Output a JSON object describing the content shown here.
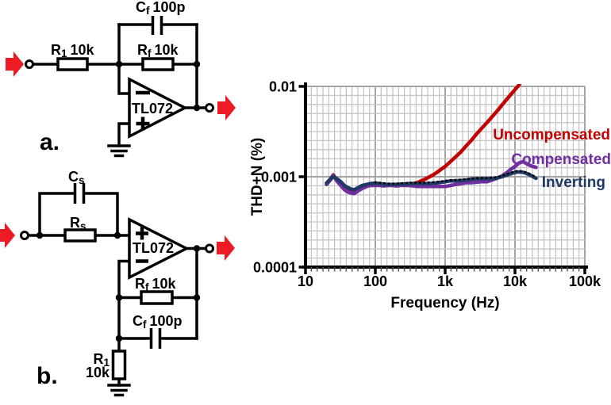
{
  "palette": {
    "arrow_red": "#ED1C24",
    "wire_black": "#000000",
    "grid_minor": "#c6c6c6",
    "grid_major": "#a4a4a4"
  },
  "circuit_a": {
    "panel_label": "a.",
    "cf": {
      "sym": "C",
      "sub": "f",
      "val": "100p"
    },
    "r1": {
      "sym": "R",
      "sub": "1",
      "val": "10k"
    },
    "rf": {
      "sym": "R",
      "sub": "f",
      "val": "10k"
    },
    "opamp": "TL072"
  },
  "circuit_b": {
    "panel_label": "b.",
    "cs": {
      "sym": "C",
      "sub": "s"
    },
    "rs": {
      "sym": "R",
      "sub": "s"
    },
    "opamp": "TL072",
    "rf": {
      "sym": "R",
      "sub": "f",
      "val": "10k"
    },
    "cf": {
      "sym": "C",
      "sub": "f",
      "val": "100p"
    },
    "r1_line1": {
      "sym": "R",
      "sub": "1"
    },
    "r1_line2": "10k"
  },
  "arrows": [
    {
      "name": "circuit-a-input-arrow",
      "tip": [
        30,
        81
      ]
    },
    {
      "name": "circuit-a-output-arrow",
      "tip": [
        297,
        136
      ]
    },
    {
      "name": "circuit-b-input-arrow",
      "tip": [
        19,
        297
      ]
    },
    {
      "name": "circuit-b-output-arrow",
      "tip": [
        296,
        313
      ]
    }
  ],
  "chart_data": {
    "type": "line",
    "xlabel": "Frequency (Hz)",
    "ylabel": "THD+N (%)",
    "x_scale": "log",
    "y_scale": "log",
    "xlim": [
      10,
      100000
    ],
    "ylim": [
      0.0001,
      0.01
    ],
    "grid": true,
    "legend_position": "right-inline",
    "x_ticks": [
      {
        "v": 10,
        "label": "10"
      },
      {
        "v": 100,
        "label": "100"
      },
      {
        "v": 1000,
        "label": "1k"
      },
      {
        "v": 10000,
        "label": "10k"
      },
      {
        "v": 100000,
        "label": "100k"
      }
    ],
    "y_ticks": [
      {
        "v": 0.01,
        "label": "0.01"
      },
      {
        "v": 0.001,
        "label": "0.001"
      },
      {
        "v": 0.0001,
        "label": "0.0001"
      }
    ],
    "series": [
      {
        "name": "Uncompensated",
        "color": "#C00000",
        "style": "solid",
        "points": [
          [
            20,
            0.00085
          ],
          [
            23,
            0.00095
          ],
          [
            25,
            0.00105
          ],
          [
            28,
            0.00092
          ],
          [
            32,
            0.0008
          ],
          [
            36,
            0.00075
          ],
          [
            40,
            0.00072
          ],
          [
            45,
            0.0007
          ],
          [
            50,
            0.0007
          ],
          [
            57,
            0.00072
          ],
          [
            65,
            0.00076
          ],
          [
            75,
            0.0008
          ],
          [
            85,
            0.00082
          ],
          [
            100,
            0.00083
          ],
          [
            115,
            0.00082
          ],
          [
            130,
            0.00081
          ],
          [
            150,
            0.0008
          ],
          [
            175,
            0.00081
          ],
          [
            200,
            0.0008
          ],
          [
            230,
            0.00081
          ],
          [
            260,
            0.00081
          ],
          [
            300,
            0.00082
          ],
          [
            350,
            0.00084
          ],
          [
            400,
            0.00086
          ],
          [
            450,
            0.0009
          ],
          [
            500,
            0.00093
          ],
          [
            600,
            0.001
          ],
          [
            700,
            0.00107
          ],
          [
            800,
            0.00115
          ],
          [
            900,
            0.00123
          ],
          [
            1000,
            0.0013
          ],
          [
            1200,
            0.00148
          ],
          [
            1400,
            0.00165
          ],
          [
            1700,
            0.0019
          ],
          [
            2000,
            0.0022
          ],
          [
            2400,
            0.00256
          ],
          [
            2800,
            0.00295
          ],
          [
            3300,
            0.0034
          ],
          [
            4000,
            0.004
          ],
          [
            4700,
            0.0046
          ],
          [
            5500,
            0.0053
          ],
          [
            6500,
            0.0062
          ],
          [
            7500,
            0.0071
          ],
          [
            8700,
            0.0081
          ],
          [
            10000,
            0.0092
          ],
          [
            11000,
            0.01
          ],
          [
            11700,
            0.0107
          ]
        ]
      },
      {
        "name": "Compensated",
        "color": "#7030A0",
        "style": "solid",
        "points": [
          [
            20,
            0.00082
          ],
          [
            23,
            0.00093
          ],
          [
            25,
            0.00104
          ],
          [
            28,
            0.0009
          ],
          [
            32,
            0.0008
          ],
          [
            36,
            0.00072
          ],
          [
            40,
            0.00068
          ],
          [
            45,
            0.00066
          ],
          [
            50,
            0.00065
          ],
          [
            57,
            0.0007
          ],
          [
            65,
            0.00074
          ],
          [
            75,
            0.00078
          ],
          [
            85,
            0.0008
          ],
          [
            100,
            0.0008
          ],
          [
            115,
            0.0008
          ],
          [
            130,
            0.00079
          ],
          [
            150,
            0.0008
          ],
          [
            175,
            0.0008
          ],
          [
            200,
            0.00079
          ],
          [
            230,
            0.0008
          ],
          [
            260,
            0.0008
          ],
          [
            300,
            0.0008
          ],
          [
            350,
            0.00079
          ],
          [
            400,
            0.00078
          ],
          [
            500,
            0.00078
          ],
          [
            600,
            0.00078
          ],
          [
            700,
            0.00078
          ],
          [
            800,
            0.00078
          ],
          [
            1000,
            0.00078
          ],
          [
            1200,
            0.0008
          ],
          [
            1400,
            0.00082
          ],
          [
            1700,
            0.00084
          ],
          [
            2000,
            0.00086
          ],
          [
            2400,
            0.00086
          ],
          [
            2800,
            0.00087
          ],
          [
            3300,
            0.00088
          ],
          [
            4000,
            0.00088
          ],
          [
            4700,
            0.00092
          ],
          [
            5500,
            0.00096
          ],
          [
            6500,
            0.00102
          ],
          [
            7500,
            0.0011
          ],
          [
            8700,
            0.00121
          ],
          [
            10000,
            0.0013
          ],
          [
            11500,
            0.00142
          ],
          [
            13000,
            0.00147
          ],
          [
            15000,
            0.00138
          ],
          [
            17000,
            0.00132
          ],
          [
            20000,
            0.00127
          ]
        ]
      },
      {
        "name": "Inverting",
        "color": "#1F3864",
        "style": "solid",
        "points": [
          [
            20,
            0.00085
          ],
          [
            23,
            0.00095
          ],
          [
            25,
            0.001
          ],
          [
            28,
            0.00095
          ],
          [
            32,
            0.00088
          ],
          [
            36,
            0.0008
          ],
          [
            40,
            0.00076
          ],
          [
            45,
            0.00073
          ],
          [
            50,
            0.00072
          ],
          [
            57,
            0.00076
          ],
          [
            65,
            0.0008
          ],
          [
            75,
            0.00082
          ],
          [
            85,
            0.00084
          ],
          [
            100,
            0.00085
          ],
          [
            115,
            0.00084
          ],
          [
            130,
            0.00083
          ],
          [
            150,
            0.00082
          ],
          [
            175,
            0.00082
          ],
          [
            200,
            0.00082
          ],
          [
            230,
            0.00083
          ],
          [
            260,
            0.00083
          ],
          [
            300,
            0.00084
          ],
          [
            350,
            0.00084
          ],
          [
            400,
            0.00084
          ],
          [
            500,
            0.00084
          ],
          [
            600,
            0.00084
          ],
          [
            700,
            0.00085
          ],
          [
            800,
            0.00086
          ],
          [
            1000,
            0.00088
          ],
          [
            1200,
            0.0009
          ],
          [
            1400,
            0.0009
          ],
          [
            1700,
            0.00091
          ],
          [
            2000,
            0.00092
          ],
          [
            2400,
            0.00094
          ],
          [
            2800,
            0.00095
          ],
          [
            3300,
            0.00095
          ],
          [
            4000,
            0.00095
          ],
          [
            4700,
            0.00095
          ],
          [
            5500,
            0.00097
          ],
          [
            6500,
            0.001
          ],
          [
            7500,
            0.00104
          ],
          [
            8700,
            0.00108
          ],
          [
            10000,
            0.00112
          ],
          [
            11500,
            0.00113
          ],
          [
            13000,
            0.00112
          ],
          [
            15000,
            0.00108
          ],
          [
            17000,
            0.00103
          ],
          [
            20000,
            0.00096
          ]
        ]
      },
      {
        "name": "dotted-overlay",
        "color": "#000000",
        "style": "dotted",
        "points": [
          [
            100,
            0.00087
          ],
          [
            130,
            0.00085
          ],
          [
            160,
            0.00084
          ],
          [
            200,
            0.00084
          ],
          [
            250,
            0.00085
          ],
          [
            320,
            0.00086
          ],
          [
            400,
            0.00086
          ],
          [
            500,
            0.00086
          ],
          [
            650,
            0.00087
          ],
          [
            800,
            0.00088
          ],
          [
            1000,
            0.0009
          ],
          [
            1300,
            0.00092
          ],
          [
            1600,
            0.00093
          ],
          [
            2000,
            0.00094
          ],
          [
            2500,
            0.00096
          ],
          [
            3200,
            0.00097
          ],
          [
            4000,
            0.00097
          ],
          [
            5000,
            0.00098
          ],
          [
            6500,
            0.00102
          ],
          [
            7500,
            0.00107
          ],
          [
            8700,
            0.00111
          ],
          [
            10000,
            0.00115
          ],
          [
            11500,
            0.00116
          ],
          [
            13000,
            0.00115
          ],
          [
            15000,
            0.00111
          ],
          [
            17000,
            0.00106
          ],
          [
            20000,
            0.00099
          ]
        ]
      }
    ]
  }
}
